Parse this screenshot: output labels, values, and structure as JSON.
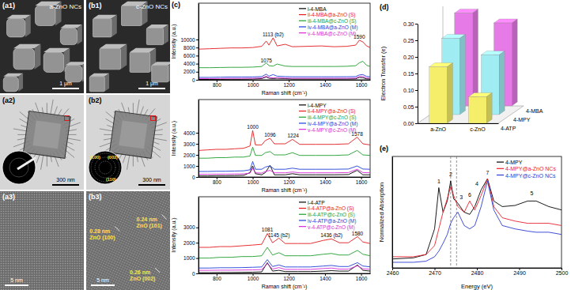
{
  "panels": [
    {
      "label": "(a1)",
      "title": "a-ZnO NCs",
      "scale_bar": "1 μm"
    },
    {
      "label": "(b1)",
      "title": "c-ZnO NCs",
      "scale_bar": "1 μm"
    },
    {
      "label": "(a2)",
      "scale_bar": "300 nm"
    },
    {
      "label": "(b2)",
      "scale_bar": "300 nm",
      "inset_labels": [
        "(100)",
        "(002)",
        "(110)"
      ]
    },
    {
      "label": "(a3)",
      "scale_bar": "5 nm"
    },
    {
      "label": "(b3)",
      "scale_bar": "5 nm",
      "annotations": [
        {
          "spacing": "0.28 nm",
          "plane": "ZnO (100)"
        },
        {
          "spacing": "0.24 nm",
          "plane": "ZnO (101)"
        },
        {
          "spacing": "0.26 nm",
          "plane": "ZnO (002)"
        }
      ]
    }
  ],
  "chart_data": [
    {
      "type": "line",
      "panel_label": "(c)",
      "x_label": "Raman shift (cm⁻¹)",
      "y_label": "Intensity (a.u.)",
      "x": [
        700,
        760,
        820,
        880,
        940,
        1000,
        1050,
        1075,
        1090,
        1113,
        1135,
        1180,
        1220,
        1300,
        1380,
        1450,
        1520,
        1570,
        1590,
        1610,
        1630,
        1650
      ],
      "xlim": [
        700,
        1650
      ],
      "xticks": [
        800,
        1000,
        1200,
        1400,
        1600
      ],
      "ylim": [
        0,
        19000
      ],
      "yticks": [
        0,
        2000,
        4000,
        6000,
        8000,
        10000
      ],
      "legend": "upper right",
      "series": [
        {
          "name": "i-4-MBA",
          "color": "#000000",
          "values": [
            100,
            100,
            120,
            150,
            150,
            200,
            300,
            700,
            400,
            300,
            400,
            300,
            200,
            200,
            200,
            200,
            200,
            250,
            600,
            500,
            250,
            200
          ]
        },
        {
          "name": "ii-4-MBA@a-ZnO (S)",
          "color": "#e31a1c",
          "values": [
            7600,
            7700,
            7800,
            7900,
            7900,
            8000,
            8300,
            9600,
            8600,
            10400,
            8400,
            8800,
            8200,
            8300,
            8400,
            8200,
            8300,
            8600,
            9800,
            9400,
            8400,
            8000
          ]
        },
        {
          "name": "iii-4-MBA@c-ZnO (S)",
          "color": "#1f9e2c",
          "values": [
            3000,
            3000,
            3050,
            3100,
            3100,
            3150,
            3300,
            4200,
            3500,
            3400,
            3900,
            3400,
            3300,
            3300,
            3300,
            3300,
            3350,
            3500,
            4200,
            4600,
            3600,
            3300
          ]
        },
        {
          "name": "iv-4-MBA@a-ZnO (M)",
          "color": "#1f3fd6",
          "values": [
            600,
            600,
            650,
            700,
            700,
            720,
            800,
            1400,
            900,
            1300,
            900,
            800,
            750,
            750,
            750,
            750,
            760,
            800,
            1200,
            1300,
            850,
            750
          ]
        },
        {
          "name": "v-4-MBA@c-ZnO (M)",
          "color": "#d62ad6",
          "values": [
            300,
            300,
            320,
            350,
            350,
            380,
            450,
            900,
            550,
            500,
            500,
            420,
            380,
            380,
            380,
            380,
            380,
            420,
            800,
            850,
            450,
            400
          ]
        }
      ],
      "annotations": [
        {
          "text": "1113 (b2)",
          "x": 1113,
          "y": 10800
        },
        {
          "text": "1075",
          "x": 1075,
          "y": 4400
        },
        {
          "text": "1590",
          "x": 1590,
          "y": 10200
        }
      ]
    },
    {
      "type": "line",
      "x_label": "Raman shift (cm⁻¹)",
      "y_label": "Intensity (a.u.)",
      "x": [
        700,
        750,
        800,
        850,
        900,
        950,
        985,
        1000,
        1015,
        1050,
        1070,
        1096,
        1120,
        1180,
        1220,
        1260,
        1350,
        1450,
        1530,
        1578,
        1610,
        1650
      ],
      "xlim": [
        700,
        1650
      ],
      "xticks": [
        800,
        1000,
        1200,
        1400,
        1600
      ],
      "ylim": [
        0,
        7000
      ],
      "yticks": [
        0,
        1000,
        2000,
        3000,
        4000
      ],
      "legend": "upper right",
      "series": [
        {
          "name": "i-4-MPY",
          "color": "#000000",
          "values": [
            100,
            100,
            120,
            120,
            130,
            150,
            400,
            1000,
            300,
            200,
            400,
            1050,
            200,
            200,
            300,
            200,
            200,
            200,
            220,
            600,
            200,
            200
          ]
        },
        {
          "name": "ii-4-MPY@a-ZnO (S)",
          "color": "#e31a1c",
          "values": [
            2400,
            2450,
            2500,
            2500,
            2550,
            2600,
            2800,
            4200,
            2900,
            2900,
            3300,
            3500,
            3000,
            3000,
            3400,
            2950,
            2950,
            2950,
            3000,
            3600,
            3000,
            2900
          ]
        },
        {
          "name": "iii-4-MPY@c-ZnO (S)",
          "color": "#1f9e2c",
          "values": [
            1700,
            1700,
            1750,
            1750,
            1800,
            1800,
            1900,
            2700,
            1950,
            1950,
            2200,
            2300,
            2000,
            2000,
            2200,
            1950,
            1950,
            1950,
            2000,
            2400,
            2000,
            1950
          ]
        },
        {
          "name": "iv-4-MPY@a-ZnO (M)",
          "color": "#1f3fd6",
          "values": [
            500,
            500,
            520,
            520,
            540,
            560,
            650,
            1400,
            700,
            700,
            900,
            1000,
            700,
            700,
            800,
            700,
            700,
            700,
            720,
            1000,
            720,
            700
          ]
        },
        {
          "name": "v-4-MPY@c-ZnO (M)",
          "color": "#d62ad6",
          "values": [
            250,
            250,
            260,
            260,
            270,
            280,
            350,
            800,
            380,
            350,
            500,
            600,
            380,
            380,
            450,
            380,
            380,
            380,
            400,
            700,
            400,
            380
          ]
        }
      ],
      "annotations": [
        {
          "text": "1000",
          "x": 1000,
          "y": 4350
        },
        {
          "text": "1096",
          "x": 1096,
          "y": 3650
        },
        {
          "text": "1224",
          "x": 1224,
          "y": 3550
        },
        {
          "text": "1578",
          "x": 1578,
          "y": 3750
        }
      ]
    },
    {
      "type": "line",
      "x_label": "Raman shift (cm⁻¹)",
      "y_label": "Intensity (a.u.)",
      "x": [
        700,
        760,
        820,
        880,
        940,
        1000,
        1050,
        1081,
        1110,
        1145,
        1180,
        1250,
        1320,
        1390,
        1436,
        1480,
        1530,
        1580,
        1610,
        1650
      ],
      "xlim": [
        700,
        1650
      ],
      "xticks": [
        800,
        1000,
        1200,
        1400,
        1600
      ],
      "ylim": [
        0,
        5000
      ],
      "yticks": [
        0,
        1000,
        2000,
        3000
      ],
      "legend": "upper right",
      "series": [
        {
          "name": "i-4-ATP",
          "color": "#000000",
          "values": [
            50,
            50,
            60,
            60,
            70,
            80,
            100,
            700,
            150,
            200,
            120,
            120,
            120,
            150,
            180,
            150,
            150,
            550,
            200,
            150
          ]
        },
        {
          "name": "ii-4-ATP@a-ZnO (S)",
          "color": "#e31a1c",
          "values": [
            1700,
            1700,
            1750,
            1750,
            1800,
            1850,
            1900,
            2600,
            2000,
            2300,
            1950,
            1950,
            1950,
            2150,
            2250,
            2000,
            2000,
            2400,
            2050,
            1950
          ]
        },
        {
          "name": "iii-4-ATP@c-ZnO (S)",
          "color": "#1f9e2c",
          "values": [
            1000,
            1000,
            1050,
            1050,
            1100,
            1100,
            1150,
            1700,
            1200,
            1350,
            1150,
            1150,
            1150,
            1250,
            1300,
            1200,
            1200,
            1500,
            1250,
            1150
          ]
        },
        {
          "name": "iv-4-ATP@a-ZnO (M)",
          "color": "#1f3fd6",
          "values": [
            350,
            350,
            370,
            370,
            380,
            400,
            420,
            900,
            450,
            550,
            420,
            420,
            420,
            480,
            520,
            450,
            450,
            700,
            480,
            430
          ]
        },
        {
          "name": "v-4-ATP@c-ZnO (M)",
          "color": "#d62ad6",
          "values": [
            200,
            200,
            210,
            210,
            220,
            230,
            250,
            650,
            280,
            380,
            260,
            260,
            260,
            320,
            350,
            280,
            280,
            500,
            300,
            270
          ]
        }
      ],
      "annotations": [
        {
          "text": "1081",
          "x": 1081,
          "y": 2750
        },
        {
          "text": "1145 (b2)",
          "x": 1145,
          "y": 2380
        },
        {
          "text": "1436 (b2)",
          "x": 1436,
          "y": 2350
        },
        {
          "text": "1580",
          "x": 1580,
          "y": 2500
        }
      ]
    },
    {
      "type": "bar",
      "panel_label": "(d)",
      "y_label": "Electron Transfer (e)",
      "categories": [
        "a-ZnO",
        "c-ZnO"
      ],
      "series": [
        {
          "name": "4-ATP",
          "color": "#f4ee6a",
          "values": [
            0.17,
            0.08
          ]
        },
        {
          "name": "4-MPY",
          "color": "#9fecf3",
          "values": [
            0.23,
            0.18
          ]
        },
        {
          "name": "4-MBA",
          "color": "#e67ae6",
          "values": [
            0.28,
            0.25
          ]
        }
      ],
      "ylim": [
        0,
        0.3
      ],
      "yticks": [
        {
          "value": 0,
          "label": "0.00"
        },
        0.05,
        {
          "value": 0.1,
          "label": "0.10"
        },
        0.15,
        {
          "value": 0.2,
          "label": "0.20"
        },
        0.25,
        {
          "value": 0.3,
          "label": "0.30"
        }
      ]
    },
    {
      "type": "line",
      "panel_label": "(e)",
      "x_label": "Energy (eV)",
      "y_label": "Normalized Absorption",
      "x": [
        2460,
        2465,
        2468,
        2470,
        2471,
        2472,
        2473,
        2473.8,
        2474.5,
        2475.5,
        2477,
        2478.3,
        2479.5,
        2481,
        2482.5,
        2484,
        2486,
        2489,
        2492,
        2494,
        2497,
        2500
      ],
      "xlim": [
        2460,
        2500
      ],
      "xticks": [
        2460,
        2470,
        2480,
        2490,
        2500
      ],
      "ylim": [
        0,
        1
      ],
      "tick_labels": "x",
      "legend": "upper right",
      "series": [
        {
          "name": "4-MPY",
          "color": "#000000",
          "values": [
            0.08,
            0.09,
            0.12,
            0.35,
            0.72,
            0.5,
            0.6,
            0.78,
            0.62,
            0.58,
            0.5,
            0.48,
            0.55,
            0.7,
            0.8,
            0.6,
            0.55,
            0.56,
            0.6,
            0.6,
            0.55,
            0.52
          ]
        },
        {
          "name": "4-MPY@a-ZnO NCs",
          "color": "#e8212e",
          "values": [
            0.1,
            0.1,
            0.12,
            0.2,
            0.35,
            0.5,
            0.62,
            0.73,
            0.65,
            0.55,
            0.5,
            0.6,
            0.52,
            0.65,
            0.8,
            0.55,
            0.45,
            0.42,
            0.4,
            0.4,
            0.4,
            0.38
          ]
        },
        {
          "name": "4-MPY@c-ZnO NCs",
          "color": "#2b3bd1",
          "values": [
            0.05,
            0.05,
            0.06,
            0.1,
            0.15,
            0.22,
            0.3,
            0.4,
            0.45,
            0.5,
            0.38,
            0.35,
            0.38,
            0.55,
            0.78,
            0.52,
            0.38,
            0.35,
            0.33,
            0.32,
            0.32,
            0.3
          ]
        }
      ],
      "reference_lines": [
        2473.8,
        2475.2
      ],
      "annotations": [
        {
          "text": "1",
          "x": 2471,
          "y": 0.76
        },
        {
          "text": "2",
          "x": 2473.8,
          "y": 0.82
        },
        {
          "text": "3",
          "x": 2476.3,
          "y": 0.62
        },
        {
          "text": "4",
          "x": 2480,
          "y": 0.74
        },
        {
          "text": "5",
          "x": 2493,
          "y": 0.65
        },
        {
          "text": "6",
          "x": 2478.3,
          "y": 0.64
        },
        {
          "text": "7",
          "x": 2482.5,
          "y": 0.84
        }
      ]
    }
  ]
}
